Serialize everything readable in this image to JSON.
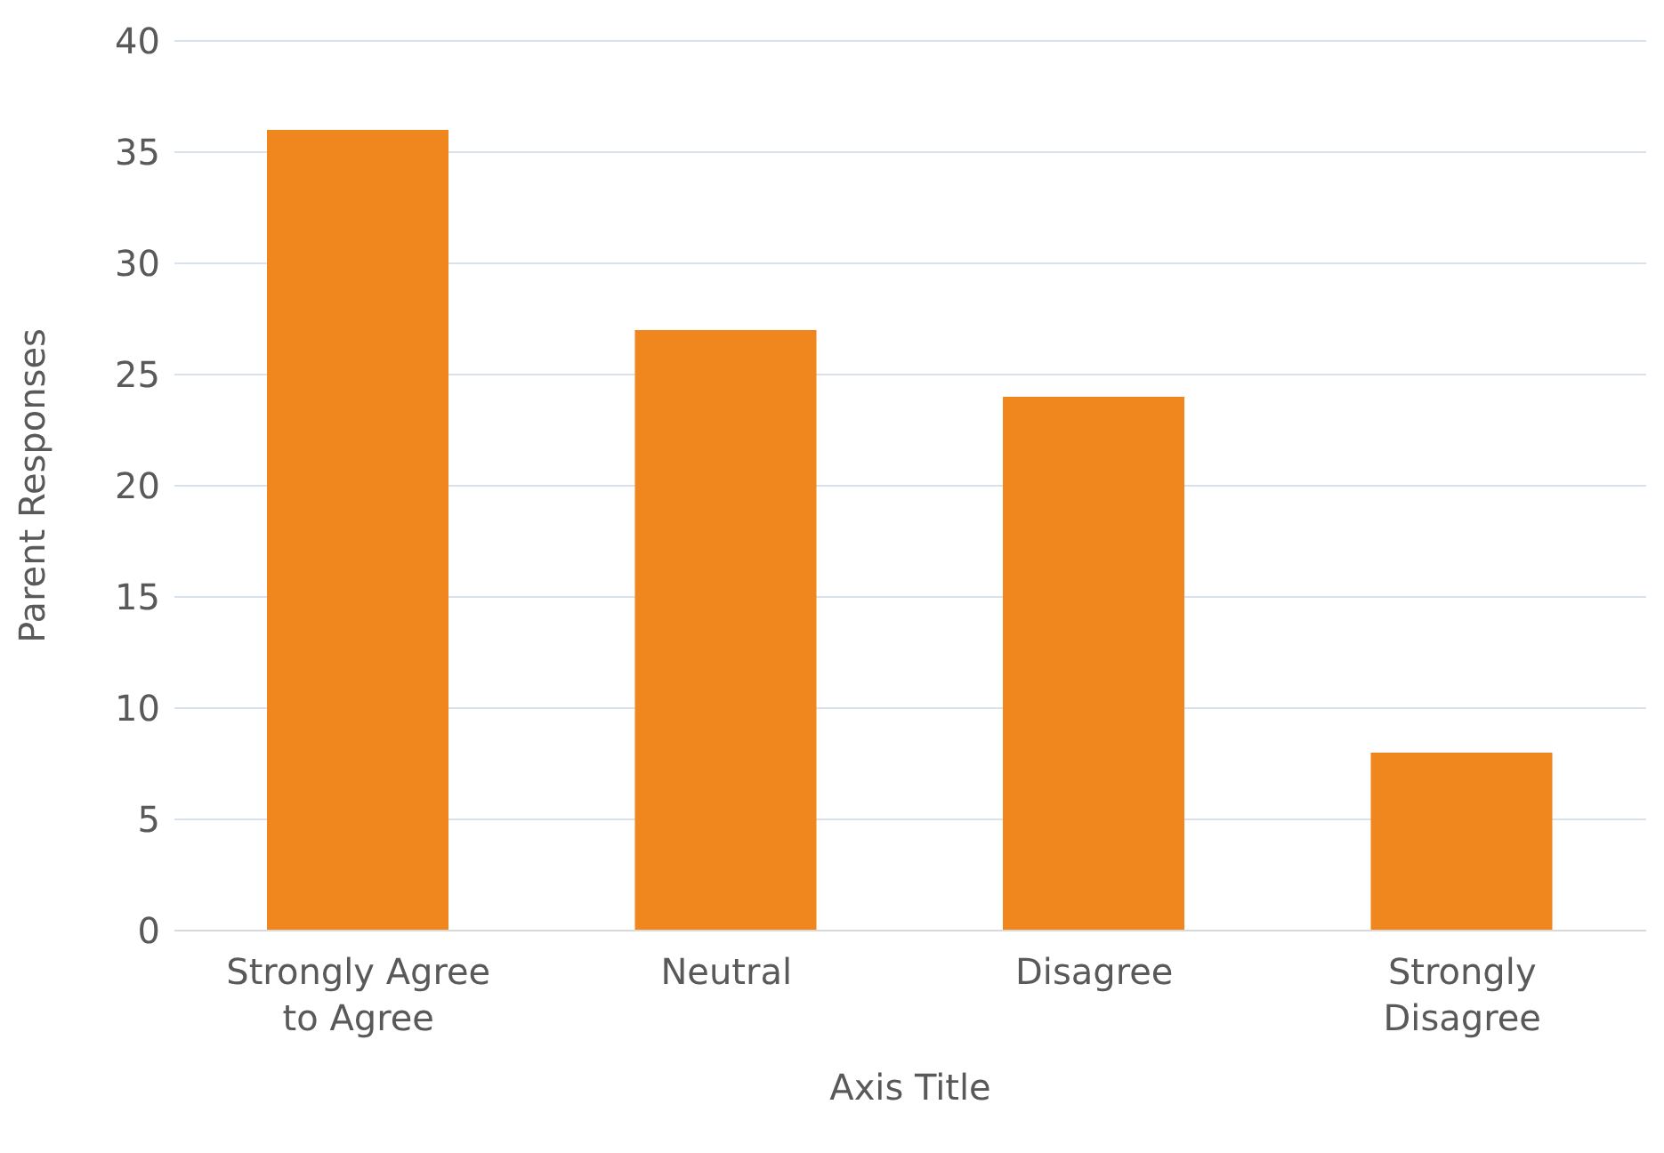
{
  "chart_data": {
    "type": "bar",
    "categories": [
      "Strongly Agree to Agree",
      "Neutral",
      "Disagree",
      "Strongly Disagree"
    ],
    "values": [
      36,
      27,
      24,
      8
    ],
    "color": "#f0861e",
    "xlabel": "Axis Title",
    "ylabel": "Parent Responses",
    "ylim": [
      0,
      40
    ],
    "yticks": [
      0,
      5,
      10,
      15,
      20,
      25,
      30,
      35,
      40
    ],
    "grid": "y"
  }
}
